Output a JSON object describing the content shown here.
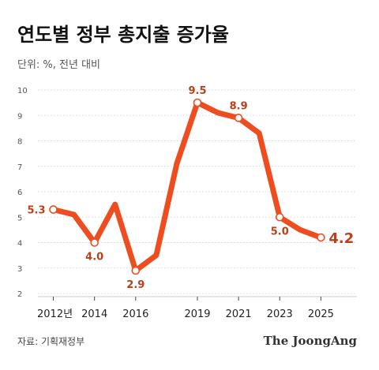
{
  "chart_data": {
    "type": "line",
    "title": "연도별 정부 총지출 증가율",
    "unit_label": "단위: %, 전년 대비",
    "x": [
      2012,
      2013,
      2014,
      2015,
      2016,
      2017,
      2018,
      2019,
      2020,
      2021,
      2022,
      2023,
      2024,
      2025
    ],
    "values": [
      5.3,
      5.1,
      4.0,
      5.5,
      2.9,
      3.5,
      7.1,
      9.5,
      9.1,
      8.9,
      8.3,
      5.0,
      4.5,
      4.2
    ],
    "x_tick_labels": [
      {
        "x": 2012,
        "label": "2012년"
      },
      {
        "x": 2014,
        "label": "2014"
      },
      {
        "x": 2016,
        "label": "2016"
      },
      {
        "x": 2019,
        "label": "2019"
      },
      {
        "x": 2021,
        "label": "2021"
      },
      {
        "x": 2023,
        "label": "2023"
      },
      {
        "x": 2025,
        "label": "2025"
      }
    ],
    "y_ticks": [
      2,
      3,
      4,
      5,
      6,
      7,
      8,
      9,
      10
    ],
    "ylim": [
      2,
      10
    ],
    "xlim": [
      2011.25,
      2026.75
    ],
    "grid": true,
    "line_color": "#ee4d1f",
    "label_color": "#b8401a",
    "marked_points": [
      {
        "x": 2012,
        "value": 5.3,
        "label": "5.3",
        "pos": "left"
      },
      {
        "x": 2014,
        "value": 4.0,
        "label": "4.0",
        "pos": "below"
      },
      {
        "x": 2016,
        "value": 2.9,
        "label": "2.9",
        "pos": "below"
      },
      {
        "x": 2019,
        "value": 9.5,
        "label": "9.5",
        "pos": "above"
      },
      {
        "x": 2021,
        "value": 8.9,
        "label": "8.9",
        "pos": "above"
      },
      {
        "x": 2023,
        "value": 5.0,
        "label": "5.0",
        "pos": "below"
      },
      {
        "x": 2025,
        "value": 4.2,
        "label": "4.2",
        "pos": "right",
        "emphasis": true
      }
    ]
  },
  "footer": {
    "source": "자료: 기획재정부",
    "brand": "The JoongAng"
  }
}
